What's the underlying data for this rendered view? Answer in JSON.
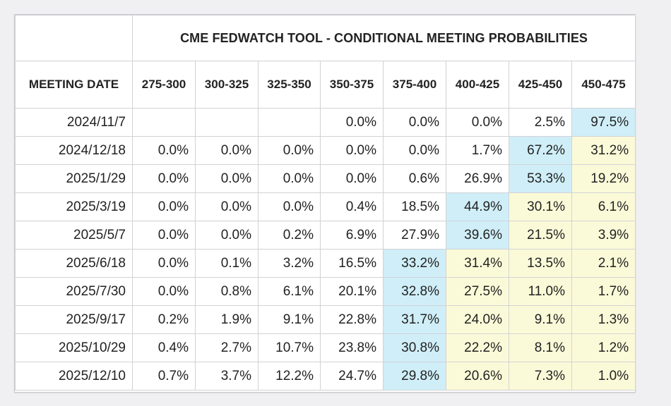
{
  "title": "CME FEDWATCH TOOL - CONDITIONAL MEETING PROBABILITIES",
  "date_header": "MEETING DATE",
  "columns": [
    "275-300",
    "300-325",
    "325-350",
    "350-375",
    "375-400",
    "400-425",
    "425-450",
    "450-475"
  ],
  "rows": [
    {
      "date": "2024/11/7",
      "values": [
        "",
        "",
        "",
        "0.0%",
        "0.0%",
        "0.0%",
        "2.5%",
        "97.5%"
      ],
      "shading": [
        "",
        "",
        "",
        "",
        "",
        "",
        "",
        "blue"
      ]
    },
    {
      "date": "2024/12/18",
      "values": [
        "0.0%",
        "0.0%",
        "0.0%",
        "0.0%",
        "0.0%",
        "1.7%",
        "67.2%",
        "31.2%"
      ],
      "shading": [
        "",
        "",
        "",
        "",
        "",
        "",
        "blue",
        "yellow"
      ]
    },
    {
      "date": "2025/1/29",
      "values": [
        "0.0%",
        "0.0%",
        "0.0%",
        "0.0%",
        "0.6%",
        "26.9%",
        "53.3%",
        "19.2%"
      ],
      "shading": [
        "",
        "",
        "",
        "",
        "",
        "",
        "blue",
        "yellow"
      ]
    },
    {
      "date": "2025/3/19",
      "values": [
        "0.0%",
        "0.0%",
        "0.0%",
        "0.4%",
        "18.5%",
        "44.9%",
        "30.1%",
        "6.1%"
      ],
      "shading": [
        "",
        "",
        "",
        "",
        "",
        "blue",
        "yellow",
        "yellow"
      ]
    },
    {
      "date": "2025/5/7",
      "values": [
        "0.0%",
        "0.0%",
        "0.2%",
        "6.9%",
        "27.9%",
        "39.6%",
        "21.5%",
        "3.9%"
      ],
      "shading": [
        "",
        "",
        "",
        "",
        "",
        "blue",
        "yellow",
        "yellow"
      ]
    },
    {
      "date": "2025/6/18",
      "values": [
        "0.0%",
        "0.1%",
        "3.2%",
        "16.5%",
        "33.2%",
        "31.4%",
        "13.5%",
        "2.1%"
      ],
      "shading": [
        "",
        "",
        "",
        "",
        "blue",
        "yellow",
        "yellow",
        "yellow"
      ]
    },
    {
      "date": "2025/7/30",
      "values": [
        "0.0%",
        "0.8%",
        "6.1%",
        "20.1%",
        "32.8%",
        "27.5%",
        "11.0%",
        "1.7%"
      ],
      "shading": [
        "",
        "",
        "",
        "",
        "blue",
        "yellow",
        "yellow",
        "yellow"
      ]
    },
    {
      "date": "2025/9/17",
      "values": [
        "0.2%",
        "1.9%",
        "9.1%",
        "22.8%",
        "31.7%",
        "24.0%",
        "9.1%",
        "1.3%"
      ],
      "shading": [
        "",
        "",
        "",
        "",
        "blue",
        "yellow",
        "yellow",
        "yellow"
      ]
    },
    {
      "date": "2025/10/29",
      "values": [
        "0.4%",
        "2.7%",
        "10.7%",
        "23.8%",
        "30.8%",
        "22.2%",
        "8.1%",
        "1.2%"
      ],
      "shading": [
        "",
        "",
        "",
        "",
        "blue",
        "yellow",
        "yellow",
        "yellow"
      ]
    },
    {
      "date": "2025/12/10",
      "values": [
        "0.7%",
        "3.7%",
        "12.2%",
        "24.7%",
        "29.8%",
        "20.6%",
        "7.3%",
        "1.0%"
      ],
      "shading": [
        "",
        "",
        "",
        "",
        "blue",
        "yellow",
        "yellow",
        "yellow"
      ]
    }
  ],
  "colors": {
    "highlight_blue": "#cfeef8",
    "highlight_yellow": "#fbfad8",
    "border": "#d2d2d6"
  }
}
